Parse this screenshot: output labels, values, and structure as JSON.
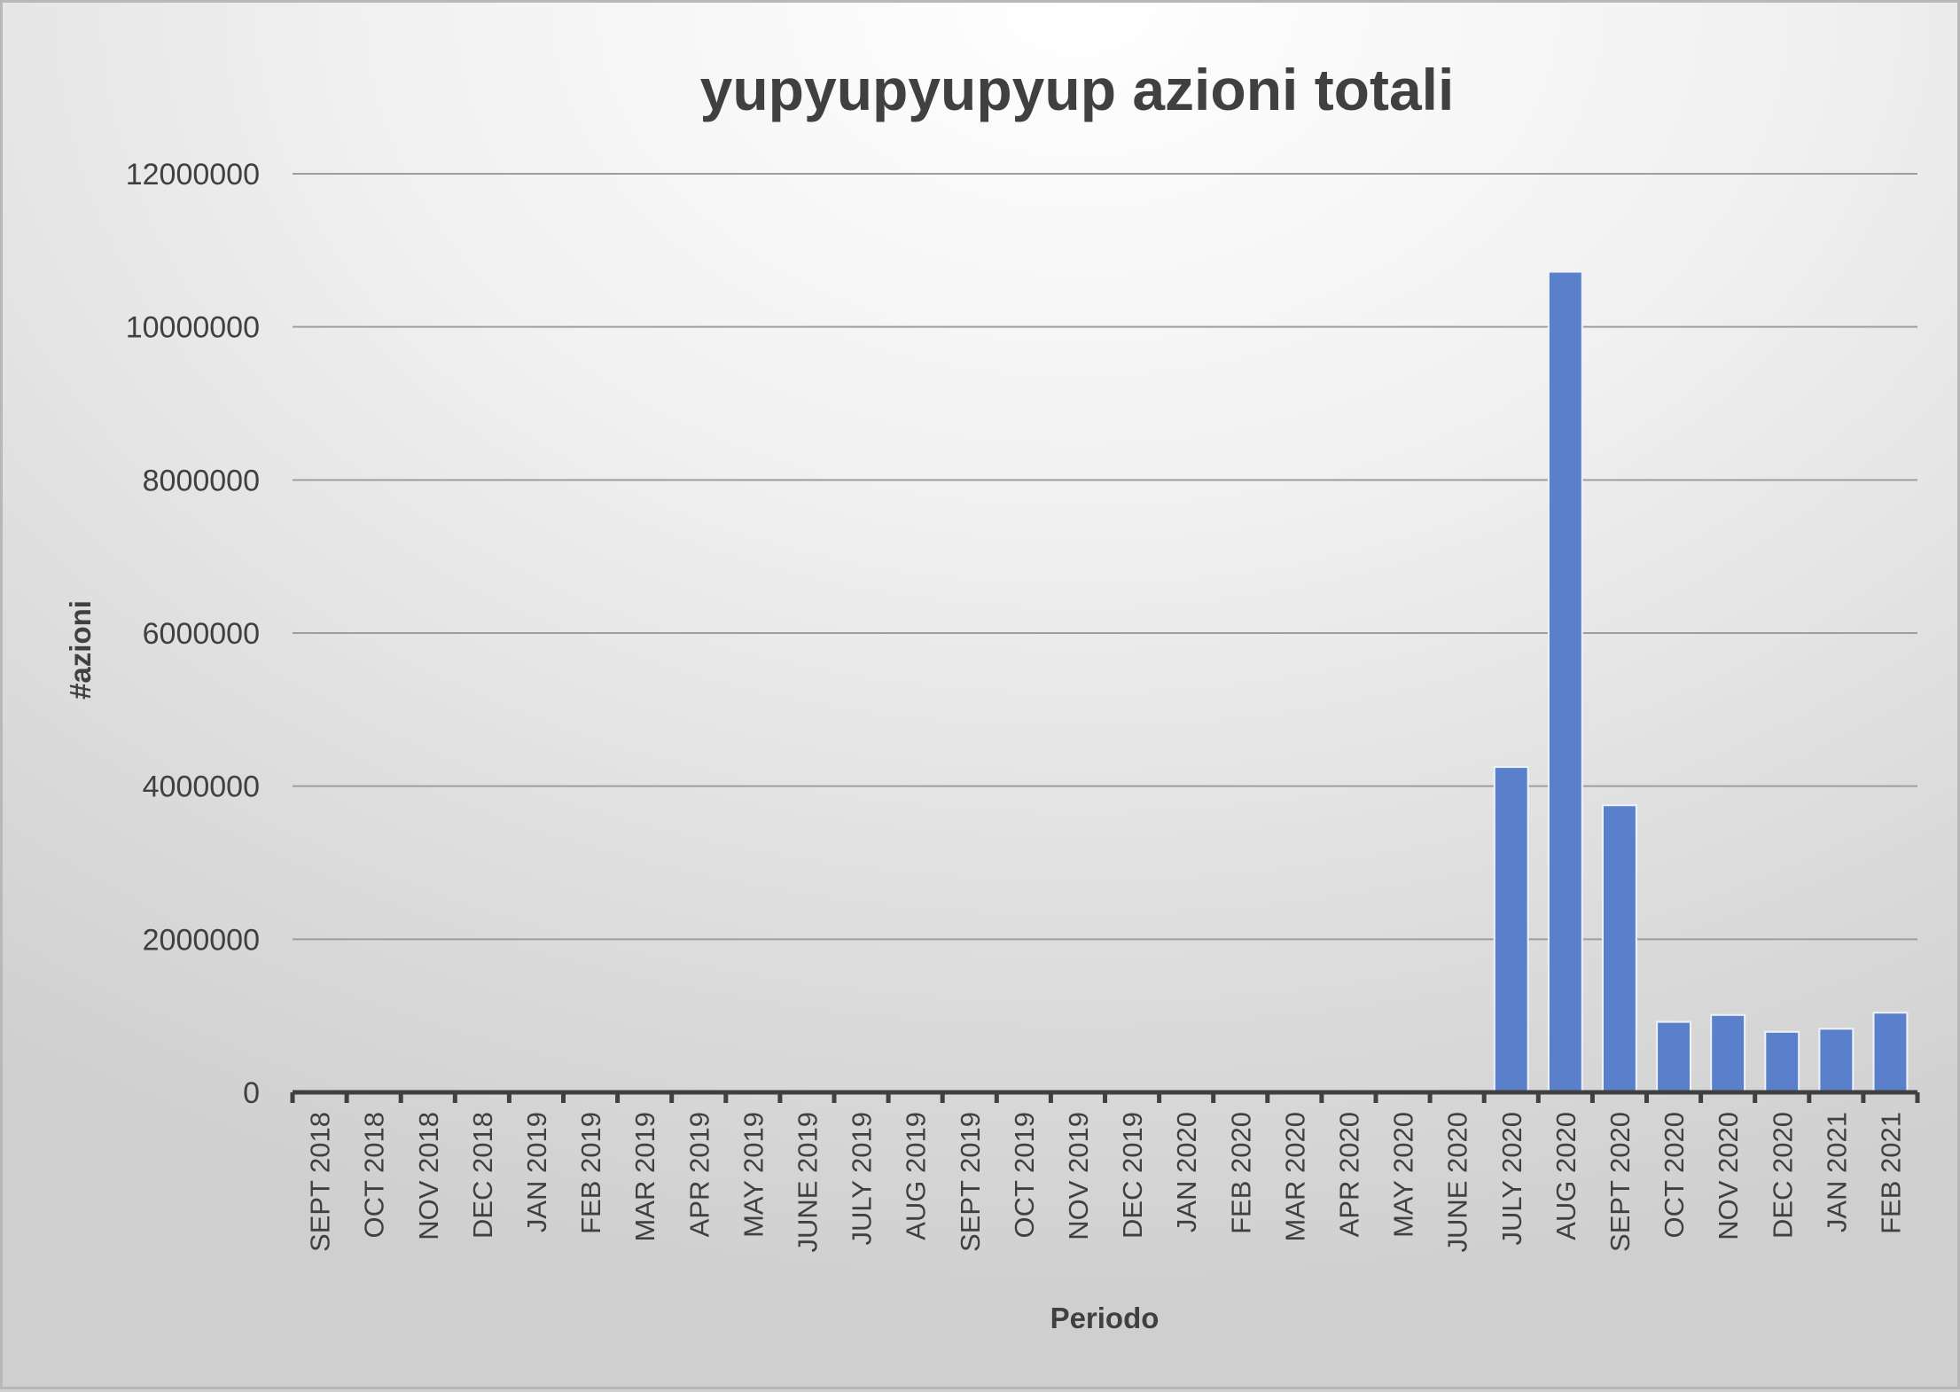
{
  "chart_data": {
    "type": "bar",
    "title": "yupyupyupyup azioni totali",
    "xlabel": "Periodo",
    "ylabel": "#azioni",
    "ylim": [
      0,
      12000000
    ],
    "yticks": [
      "0",
      "2000000",
      "4000000",
      "6000000",
      "8000000",
      "10000000",
      "12000000"
    ],
    "grid": true,
    "legend": "none",
    "bar_color": "#5a80cc",
    "categories": [
      "SEPT 2018",
      "OCT 2018",
      "NOV 2018",
      "DEC 2018",
      "JAN 2019",
      "FEB 2019",
      "MAR 2019",
      "APR 2019",
      "MAY 2019",
      "JUNE 2019",
      "JULY 2019",
      "AUG 2019",
      "SEPT 2019",
      "OCT 2019",
      "NOV 2019",
      "DEC 2019",
      "JAN 2020",
      "FEB 2020",
      "MAR 2020",
      "APR 2020",
      "MAY 2020",
      "JUNE 2020",
      "JULY 2020",
      "AUG 2020",
      "SEPT 2020",
      "OCT 2020",
      "NOV 2020",
      "DEC 2020",
      "JAN 2021",
      "FEB 2021"
    ],
    "values": [
      0,
      0,
      0,
      0,
      0,
      0,
      0,
      0,
      0,
      0,
      0,
      0,
      0,
      0,
      0,
      0,
      0,
      0,
      0,
      0,
      0,
      0,
      4250000,
      10720000,
      3750000,
      920000,
      1010000,
      790000,
      830000,
      1040000
    ]
  }
}
